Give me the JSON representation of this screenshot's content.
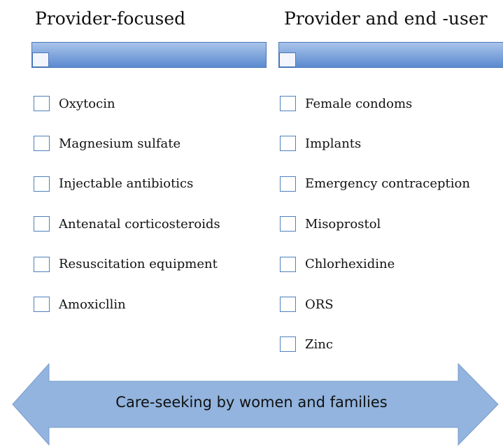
{
  "columns": [
    {
      "heading": "Provider-focused",
      "items": [
        "Oxytocin",
        "Magnesium sulfate",
        "Injectable antibiotics",
        "Antenatal corticosteroids",
        "Resuscitation equipment",
        "Amoxicllin"
      ]
    },
    {
      "heading": "Provider and end -user",
      "items": [
        "Female condoms",
        "Implants",
        "Emergency contraception",
        "Misoprostol",
        "Chlorhexidine",
        "ORS",
        "Zinc"
      ]
    }
  ],
  "arrow": {
    "label": "Care-seeking by women and families"
  }
}
